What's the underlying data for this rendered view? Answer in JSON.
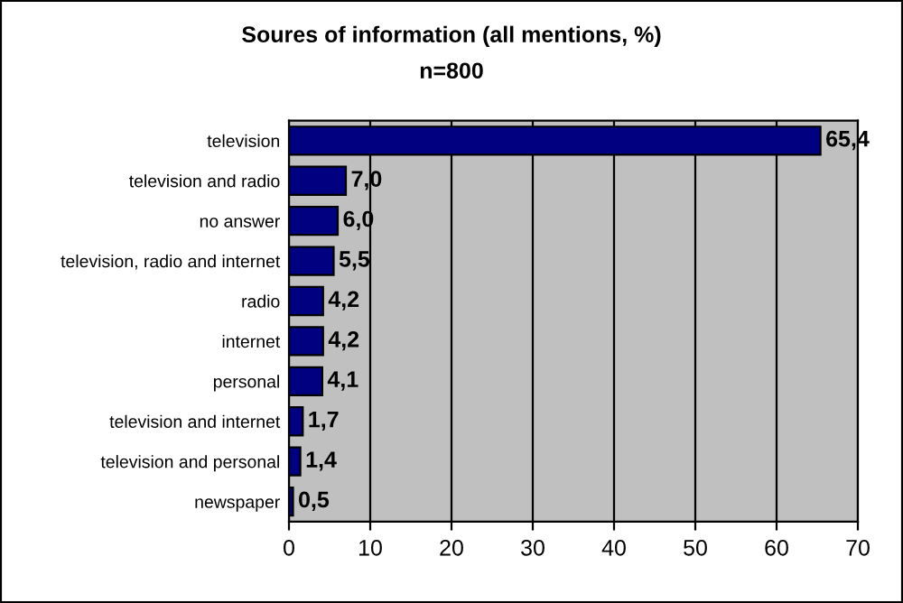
{
  "chart_data": {
    "type": "bar",
    "orientation": "horizontal",
    "title": "Soures of information (all mentions, %)",
    "subtitle": "n=800",
    "categories": [
      "television",
      "television and radio",
      "no answer",
      "television, radio and internet",
      "radio",
      "internet",
      "personal",
      "television and internet",
      "television and personal",
      "newspaper"
    ],
    "values": [
      65.4,
      7.0,
      6.0,
      5.5,
      4.2,
      4.2,
      4.1,
      1.7,
      1.4,
      0.5
    ],
    "value_labels": [
      "65,4",
      "7,0",
      "6,0",
      "5,5",
      "4,2",
      "4,2",
      "4,1",
      "1,7",
      "1,4",
      "0,5"
    ],
    "color": "#000080",
    "xlim": [
      0,
      70
    ],
    "xticks": [
      0,
      10,
      20,
      30,
      40,
      50,
      60,
      70
    ],
    "grid": "x",
    "legend": false
  }
}
